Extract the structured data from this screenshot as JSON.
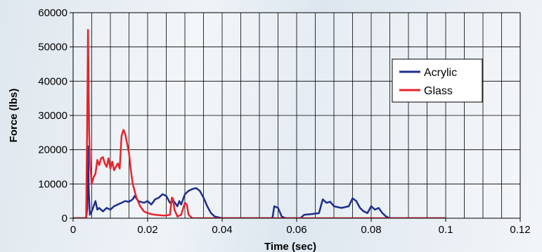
{
  "chart_data": {
    "type": "line",
    "title": "",
    "xlabel": "Time (sec)",
    "ylabel": "Force (lbs)",
    "xlim": [
      0,
      0.12
    ],
    "ylim": [
      0,
      60000
    ],
    "x_ticks": [
      0,
      0.02,
      0.04,
      0.06,
      0.08,
      0.1,
      0.12
    ],
    "x_tick_labels": [
      "0",
      "0.02",
      "0.04",
      "0.06",
      "0.08",
      "0.1",
      "0.12"
    ],
    "y_ticks": [
      0,
      10000,
      20000,
      30000,
      40000,
      50000,
      60000
    ],
    "y_tick_labels": [
      "0",
      "10000",
      "20000",
      "30000",
      "40000",
      "50000",
      "60000"
    ],
    "x_minor_step": 0.005,
    "grid": true,
    "legend_position": "top-right",
    "series": [
      {
        "name": "Acrylic",
        "color": "#1e2d8c",
        "points": [
          [
            0,
            0
          ],
          [
            0.0035,
            0
          ],
          [
            0.0038,
            3000
          ],
          [
            0.004,
            21000
          ],
          [
            0.0042,
            8000
          ],
          [
            0.0045,
            1000
          ],
          [
            0.005,
            2000
          ],
          [
            0.006,
            5000
          ],
          [
            0.0065,
            2500
          ],
          [
            0.007,
            3000
          ],
          [
            0.008,
            2000
          ],
          [
            0.009,
            3000
          ],
          [
            0.01,
            2500
          ],
          [
            0.011,
            3500
          ],
          [
            0.012,
            4000
          ],
          [
            0.013,
            4500
          ],
          [
            0.014,
            5000
          ],
          [
            0.015,
            4800
          ],
          [
            0.016,
            5500
          ],
          [
            0.0165,
            6500
          ],
          [
            0.0175,
            5000
          ],
          [
            0.019,
            4500
          ],
          [
            0.02,
            5000
          ],
          [
            0.021,
            4000
          ],
          [
            0.022,
            5500
          ],
          [
            0.023,
            6000
          ],
          [
            0.024,
            7000
          ],
          [
            0.025,
            6500
          ],
          [
            0.026,
            4500
          ],
          [
            0.027,
            5000
          ],
          [
            0.028,
            3500
          ],
          [
            0.0285,
            5000
          ],
          [
            0.029,
            4000
          ],
          [
            0.03,
            7000
          ],
          [
            0.031,
            8000
          ],
          [
            0.032,
            8500
          ],
          [
            0.033,
            8800
          ],
          [
            0.034,
            8000
          ],
          [
            0.035,
            6000
          ],
          [
            0.036,
            3500
          ],
          [
            0.037,
            1500
          ],
          [
            0.038,
            500
          ],
          [
            0.04,
            0
          ],
          [
            0.0535,
            0
          ],
          [
            0.054,
            3500
          ],
          [
            0.055,
            3000
          ],
          [
            0.056,
            500
          ],
          [
            0.057,
            0
          ],
          [
            0.061,
            0
          ],
          [
            0.062,
            1000
          ],
          [
            0.064,
            1200
          ],
          [
            0.066,
            1500
          ],
          [
            0.067,
            5500
          ],
          [
            0.068,
            4500
          ],
          [
            0.069,
            4800
          ],
          [
            0.07,
            3500
          ],
          [
            0.072,
            3000
          ],
          [
            0.074,
            3500
          ],
          [
            0.075,
            5800
          ],
          [
            0.076,
            5000
          ],
          [
            0.077,
            3000
          ],
          [
            0.078,
            2000
          ],
          [
            0.079,
            1500
          ],
          [
            0.08,
            3500
          ],
          [
            0.081,
            2500
          ],
          [
            0.082,
            3000
          ],
          [
            0.083,
            1500
          ],
          [
            0.084,
            500
          ],
          [
            0.085,
            0
          ],
          [
            0.1,
            0
          ]
        ]
      },
      {
        "name": "Glass",
        "color": "#e8232a",
        "points": [
          [
            0,
            0
          ],
          [
            0.0035,
            0
          ],
          [
            0.0038,
            30000
          ],
          [
            0.004,
            55000
          ],
          [
            0.0043,
            25000
          ],
          [
            0.0046,
            15500
          ],
          [
            0.005,
            10000
          ],
          [
            0.0055,
            12000
          ],
          [
            0.006,
            13000
          ],
          [
            0.0065,
            17000
          ],
          [
            0.007,
            15500
          ],
          [
            0.0075,
            17500
          ],
          [
            0.008,
            17800
          ],
          [
            0.0085,
            16000
          ],
          [
            0.009,
            15000
          ],
          [
            0.0095,
            17500
          ],
          [
            0.01,
            14500
          ],
          [
            0.0105,
            16500
          ],
          [
            0.011,
            14000
          ],
          [
            0.012,
            16000
          ],
          [
            0.0125,
            14500
          ],
          [
            0.013,
            24000
          ],
          [
            0.0135,
            25800
          ],
          [
            0.014,
            24500
          ],
          [
            0.015,
            19000
          ],
          [
            0.0155,
            14000
          ],
          [
            0.016,
            10000
          ],
          [
            0.017,
            6000
          ],
          [
            0.018,
            3500
          ],
          [
            0.019,
            2000
          ],
          [
            0.02,
            1500
          ],
          [
            0.021,
            1200
          ],
          [
            0.022,
            1000
          ],
          [
            0.024,
            800
          ],
          [
            0.025,
            800
          ],
          [
            0.026,
            1000
          ],
          [
            0.0265,
            6000
          ],
          [
            0.0268,
            5800
          ],
          [
            0.0272,
            2500
          ],
          [
            0.028,
            500
          ],
          [
            0.029,
            1000
          ],
          [
            0.03,
            4500
          ],
          [
            0.0305,
            4000
          ],
          [
            0.031,
            1000
          ],
          [
            0.032,
            0
          ],
          [
            0.1,
            0
          ]
        ]
      }
    ]
  }
}
